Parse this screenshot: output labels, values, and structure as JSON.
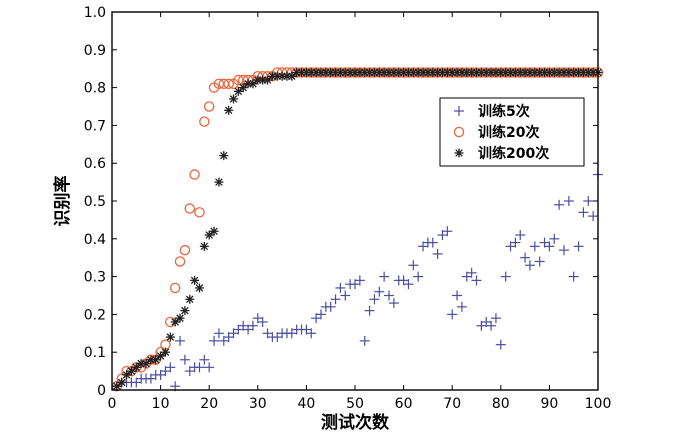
{
  "chart_data": {
    "type": "scatter",
    "xlabel": "测试次数",
    "ylabel": "识别率",
    "xlim": [
      0,
      100
    ],
    "ylim": [
      0,
      1.0
    ],
    "xticks": [
      "0",
      "10",
      "20",
      "30",
      "40",
      "50",
      "60",
      "70",
      "80",
      "90",
      "100"
    ],
    "yticks": [
      "0",
      "0.1",
      "0.2",
      "0.3",
      "0.4",
      "0.5",
      "0.6",
      "0.7",
      "0.8",
      "0.9",
      "1.0"
    ],
    "grid": false,
    "legend_position": "right",
    "x": [
      1,
      2,
      3,
      4,
      5,
      6,
      7,
      8,
      9,
      10,
      11,
      12,
      13,
      14,
      15,
      16,
      17,
      18,
      19,
      20,
      21,
      22,
      23,
      24,
      25,
      26,
      27,
      28,
      29,
      30,
      31,
      32,
      33,
      34,
      35,
      36,
      37,
      38,
      39,
      40,
      41,
      42,
      43,
      44,
      45,
      46,
      47,
      48,
      49,
      50,
      51,
      52,
      53,
      54,
      55,
      56,
      57,
      58,
      59,
      60,
      61,
      62,
      63,
      64,
      65,
      66,
      67,
      68,
      69,
      70,
      71,
      72,
      73,
      74,
      75,
      76,
      77,
      78,
      79,
      80,
      81,
      82,
      83,
      84,
      85,
      86,
      87,
      88,
      89,
      90,
      91,
      92,
      93,
      94,
      95,
      96,
      97,
      98,
      99,
      100
    ],
    "series": [
      {
        "name": "训练5次",
        "marker": "plus",
        "color": "#4b4fa0",
        "values": [
          0.01,
          0.02,
          0.02,
          0.02,
          0.02,
          0.03,
          0.03,
          0.03,
          0.04,
          0.04,
          0.05,
          0.06,
          0.01,
          0.13,
          0.08,
          0.05,
          0.06,
          0.06,
          0.08,
          0.06,
          0.13,
          0.15,
          0.13,
          0.14,
          0.15,
          0.16,
          0.17,
          0.16,
          0.17,
          0.19,
          0.18,
          0.15,
          0.14,
          0.14,
          0.15,
          0.15,
          0.15,
          0.16,
          0.16,
          0.16,
          0.15,
          0.19,
          0.2,
          0.22,
          0.22,
          0.24,
          0.27,
          0.25,
          0.28,
          0.28,
          0.29,
          0.13,
          0.21,
          0.24,
          0.26,
          0.3,
          0.25,
          0.23,
          0.29,
          0.29,
          0.28,
          0.33,
          0.3,
          0.38,
          0.39,
          0.39,
          0.36,
          0.41,
          0.42,
          0.2,
          0.25,
          0.22,
          0.3,
          0.31,
          0.29,
          0.17,
          0.18,
          0.17,
          0.19,
          0.12,
          0.3,
          0.38,
          0.39,
          0.41,
          0.35,
          0.33,
          0.38,
          0.34,
          0.39,
          0.38,
          0.4,
          0.49,
          0.37,
          0.5,
          0.3,
          0.38,
          0.47,
          0.5,
          0.46,
          0.57
        ]
      },
      {
        "name": "训练20次",
        "marker": "circle",
        "color": "#e8663d",
        "values": [
          0.01,
          0.03,
          0.05,
          0.05,
          0.06,
          0.06,
          0.07,
          0.08,
          0.08,
          0.1,
          0.12,
          0.18,
          0.27,
          0.34,
          0.37,
          0.48,
          0.57,
          0.47,
          0.71,
          0.75,
          0.8,
          0.81,
          0.81,
          0.81,
          0.81,
          0.82,
          0.82,
          0.82,
          0.82,
          0.83,
          0.83,
          0.83,
          0.83,
          0.84,
          0.84,
          0.84,
          0.84,
          0.84,
          0.84,
          0.84,
          0.84,
          0.84,
          0.84,
          0.84,
          0.84,
          0.84,
          0.84,
          0.84,
          0.84,
          0.84,
          0.84,
          0.84,
          0.84,
          0.84,
          0.84,
          0.84,
          0.84,
          0.84,
          0.84,
          0.84,
          0.84,
          0.84,
          0.84,
          0.84,
          0.84,
          0.84,
          0.84,
          0.84,
          0.84,
          0.84,
          0.84,
          0.84,
          0.84,
          0.84,
          0.84,
          0.84,
          0.84,
          0.84,
          0.84,
          0.84,
          0.84,
          0.84,
          0.84,
          0.84,
          0.84,
          0.84,
          0.84,
          0.84,
          0.84,
          0.84,
          0.84,
          0.84,
          0.84,
          0.84,
          0.84,
          0.84,
          0.84,
          0.84,
          0.84,
          0.84
        ]
      },
      {
        "name": "训练200次",
        "marker": "star",
        "color": "#222222",
        "values": [
          0.01,
          0.02,
          0.04,
          0.05,
          0.06,
          0.07,
          0.07,
          0.08,
          0.08,
          0.09,
          0.1,
          0.14,
          0.18,
          0.19,
          0.21,
          0.24,
          0.29,
          0.27,
          0.38,
          0.41,
          0.42,
          0.55,
          0.62,
          0.74,
          0.77,
          0.79,
          0.8,
          0.81,
          0.81,
          0.82,
          0.82,
          0.82,
          0.83,
          0.83,
          0.83,
          0.83,
          0.83,
          0.84,
          0.84,
          0.84,
          0.84,
          0.84,
          0.84,
          0.84,
          0.84,
          0.84,
          0.84,
          0.84,
          0.84,
          0.84,
          0.84,
          0.84,
          0.84,
          0.84,
          0.84,
          0.84,
          0.84,
          0.84,
          0.84,
          0.84,
          0.84,
          0.84,
          0.84,
          0.84,
          0.84,
          0.84,
          0.84,
          0.84,
          0.84,
          0.84,
          0.84,
          0.84,
          0.84,
          0.84,
          0.84,
          0.84,
          0.84,
          0.84,
          0.84,
          0.84,
          0.84,
          0.84,
          0.84,
          0.84,
          0.84,
          0.84,
          0.84,
          0.84,
          0.84,
          0.84,
          0.84,
          0.84,
          0.84,
          0.84,
          0.84,
          0.84,
          0.84,
          0.84,
          0.84,
          0.84
        ]
      }
    ]
  }
}
